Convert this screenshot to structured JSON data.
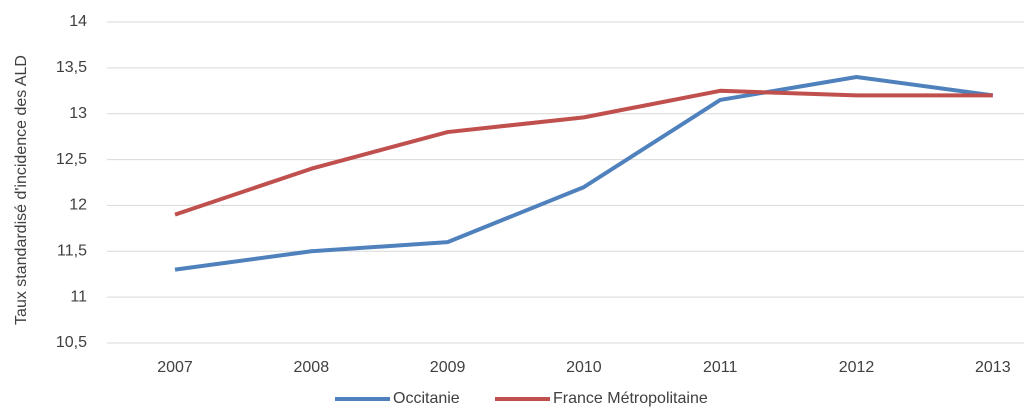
{
  "chart_data": {
    "type": "line",
    "y_label": "Taux standardisé d'incidence des ALD",
    "categories": [
      "2007",
      "2008",
      "2009",
      "2010",
      "2011",
      "2012",
      "2013"
    ],
    "series": [
      {
        "name": "Occitanie",
        "color": "#4f81bd",
        "values": [
          11.3,
          11.5,
          11.6,
          12.2,
          13.15,
          13.4,
          13.2
        ]
      },
      {
        "name": "France Métropolitaine",
        "color": "#c0504d",
        "values": [
          11.9,
          12.4,
          12.8,
          12.96,
          13.25,
          13.2,
          13.2
        ]
      }
    ],
    "ylim": [
      10.5,
      14
    ],
    "yticks": [
      {
        "value": 10.5,
        "label": "10,5"
      },
      11,
      {
        "value": 11.5,
        "label": "11,5"
      },
      12,
      {
        "value": 12.5,
        "label": "12,5"
      },
      13,
      {
        "value": 13.5,
        "label": "13,5"
      },
      14
    ],
    "grid": true,
    "legend": "bottom"
  }
}
